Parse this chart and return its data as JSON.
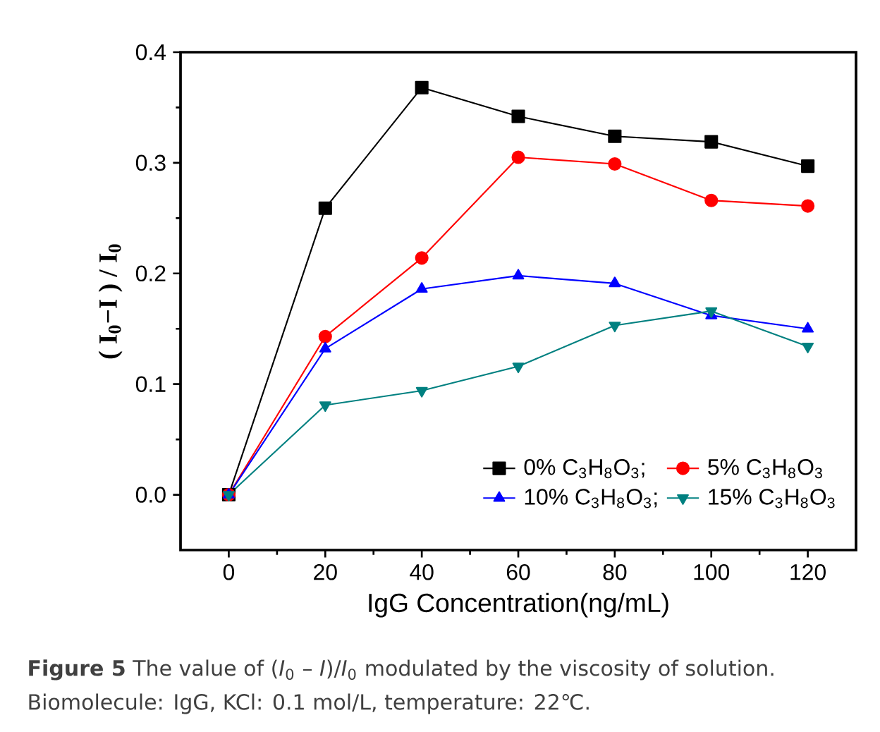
{
  "chart_data": {
    "type": "line",
    "xlabel": "IgG Concentration(ng/mL)",
    "ylabel": "( I$_{0}$−I ) / I$_{0}$",
    "x": [
      0,
      20,
      40,
      60,
      80,
      100,
      120
    ],
    "series": [
      {
        "name": "0%  C$_{3}$H$_{8}$O$_{3}$;",
        "color": "#000000",
        "marker": "square",
        "values": [
          0,
          0.259,
          0.368,
          0.342,
          0.324,
          0.319,
          0.297
        ]
      },
      {
        "name": "5%  C$_{3}$H$_{8}$O$_{3}$",
        "color": "#ff0000",
        "marker": "circle",
        "values": [
          0,
          0.143,
          0.214,
          0.305,
          0.299,
          0.266,
          0.261
        ]
      },
      {
        "name": "10% C$_{3}$H$_{8}$O$_{3}$;",
        "color": "#0000ff",
        "marker": "triangle",
        "values": [
          0,
          0.132,
          0.186,
          0.198,
          0.191,
          0.162,
          0.15
        ]
      },
      {
        "name": "15% C$_{3}$H$_{8}$O$_{3}$",
        "color": "#008080",
        "marker": "triangle-down",
        "values": [
          0,
          0.081,
          0.094,
          0.116,
          0.153,
          0.166,
          0.134
        ]
      }
    ],
    "xlim": [
      -10,
      130
    ],
    "xticks": [
      0,
      20,
      40,
      60,
      80,
      100,
      120
    ],
    "ylim": [
      -0.05,
      0.4
    ],
    "yticks": [
      {
        "value": 0,
        "label": "0.0"
      },
      0.1,
      0.2,
      0.3,
      0.4
    ],
    "legend": "bottom right",
    "line_style": "solid",
    "annotations": [
      "**Figure 5** The value of (*I*$_{0}$ – *I*)/*I*$_{0}$ modulated by the viscosity of solution.",
      "Biomolecule: IgG, KCl: 0.1 mol/L, temperature: 22℃."
    ]
  }
}
